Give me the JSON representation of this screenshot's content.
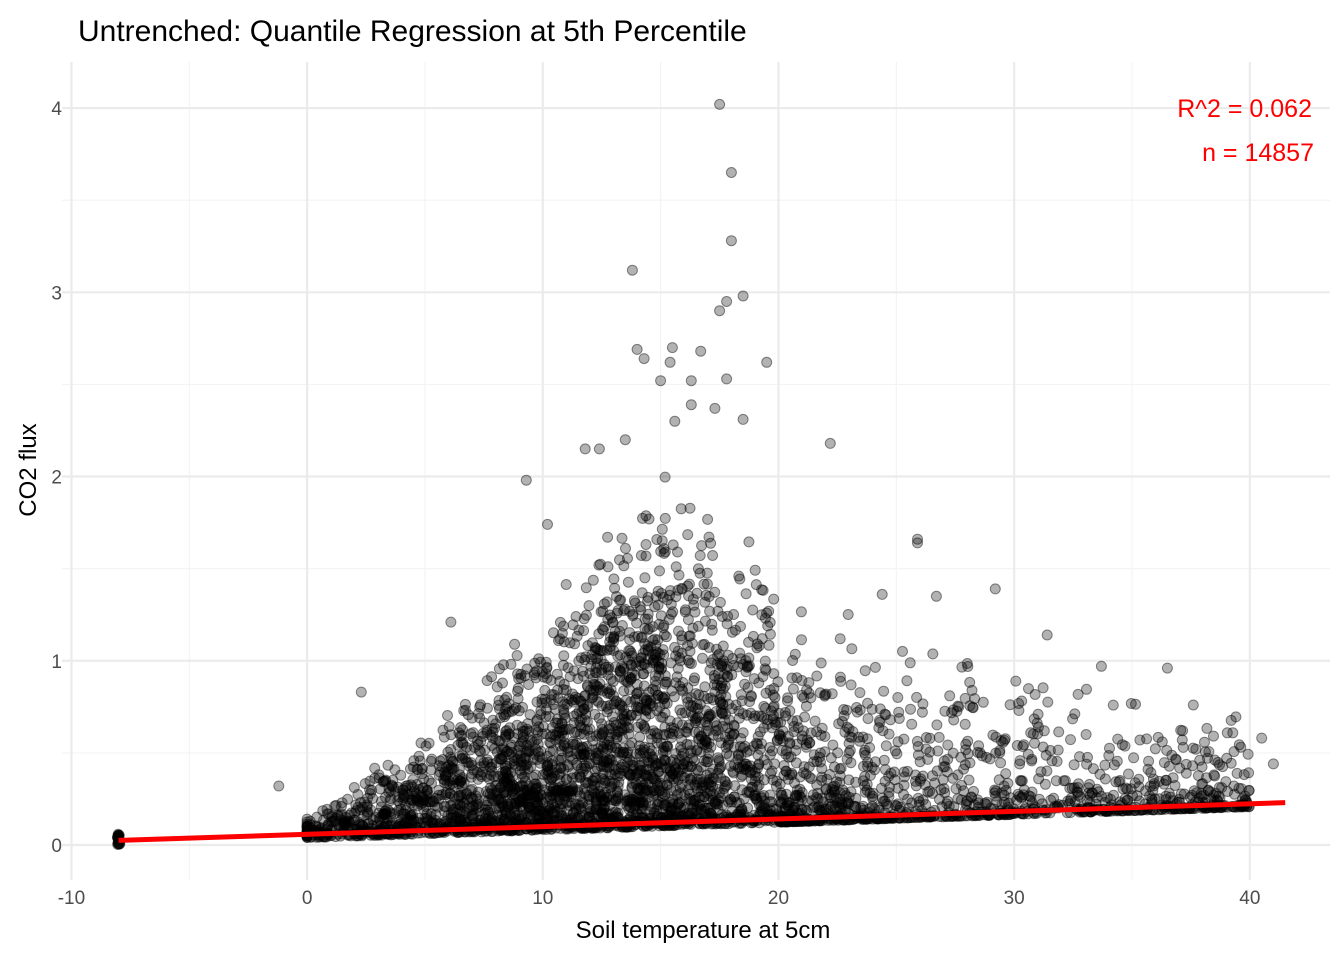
{
  "chart_data": {
    "type": "scatter",
    "title": "Untrenched: Quantile Regression at 5th Percentile",
    "xlabel": "Soil temperature at 5cm",
    "ylabel": "CO2 flux",
    "xlim": [
      -10.4,
      43.4
    ],
    "ylim": [
      -0.19,
      4.25
    ],
    "x_ticks": [
      -10,
      0,
      10,
      20,
      30,
      40
    ],
    "x_tick_labels": [
      "-10",
      "0",
      "10",
      "20",
      "30",
      "40"
    ],
    "y_ticks": [
      0,
      1,
      2,
      3,
      4
    ],
    "y_tick_labels": [
      "0",
      "1",
      "2",
      "3",
      "4"
    ],
    "grid": true,
    "point_color": "#000000",
    "point_opacity": 0.3,
    "line_color": "#ff0000",
    "regression": {
      "type": "quantile",
      "tau": 0.05,
      "x": [
        -8,
        41.5
      ],
      "y": [
        0.025,
        0.23
      ]
    },
    "annotations": [
      {
        "text": "R^2 = 0.062",
        "position": "top-right"
      },
      {
        "text": "n = 14857",
        "position": "top-right"
      }
    ],
    "notable_points": [
      {
        "x": 17.5,
        "y": 4.02
      },
      {
        "x": 18.0,
        "y": 3.65
      },
      {
        "x": 18.0,
        "y": 3.28
      },
      {
        "x": 13.8,
        "y": 3.12
      },
      {
        "x": 18.5,
        "y": 2.98
      },
      {
        "x": 17.8,
        "y": 2.95
      },
      {
        "x": 17.5,
        "y": 2.9
      },
      {
        "x": 15.5,
        "y": 2.7
      },
      {
        "x": 14.0,
        "y": 2.69
      },
      {
        "x": 16.7,
        "y": 2.68
      },
      {
        "x": 14.3,
        "y": 2.64
      },
      {
        "x": 15.4,
        "y": 2.62
      },
      {
        "x": 19.5,
        "y": 2.62
      },
      {
        "x": 17.8,
        "y": 2.53
      },
      {
        "x": 15.0,
        "y": 2.52
      },
      {
        "x": 16.3,
        "y": 2.52
      },
      {
        "x": 16.3,
        "y": 2.39
      },
      {
        "x": 17.3,
        "y": 2.37
      },
      {
        "x": 18.5,
        "y": 2.31
      },
      {
        "x": 15.6,
        "y": 2.3
      },
      {
        "x": 22.2,
        "y": 2.18
      },
      {
        "x": 11.8,
        "y": 2.15
      },
      {
        "x": 12.4,
        "y": 2.15
      },
      {
        "x": 13.5,
        "y": 2.2
      },
      {
        "x": 9.3,
        "y": 1.98
      },
      {
        "x": 10.2,
        "y": 1.74
      },
      {
        "x": 25.9,
        "y": 1.66
      },
      {
        "x": 25.9,
        "y": 1.64
      },
      {
        "x": 29.2,
        "y": 1.39
      },
      {
        "x": 26.7,
        "y": 1.35
      },
      {
        "x": 24.4,
        "y": 1.36
      },
      {
        "x": 6.1,
        "y": 1.21
      },
      {
        "x": 31.4,
        "y": 1.14
      },
      {
        "x": 33.7,
        "y": 0.97
      },
      {
        "x": 36.5,
        "y": 0.96
      },
      {
        "x": 2.3,
        "y": 0.83
      },
      {
        "x": -1.2,
        "y": 0.32
      },
      {
        "x": 40.5,
        "y": 0.58
      },
      {
        "x": 41.0,
        "y": 0.44
      },
      {
        "x": 37.6,
        "y": 0.76
      }
    ]
  }
}
